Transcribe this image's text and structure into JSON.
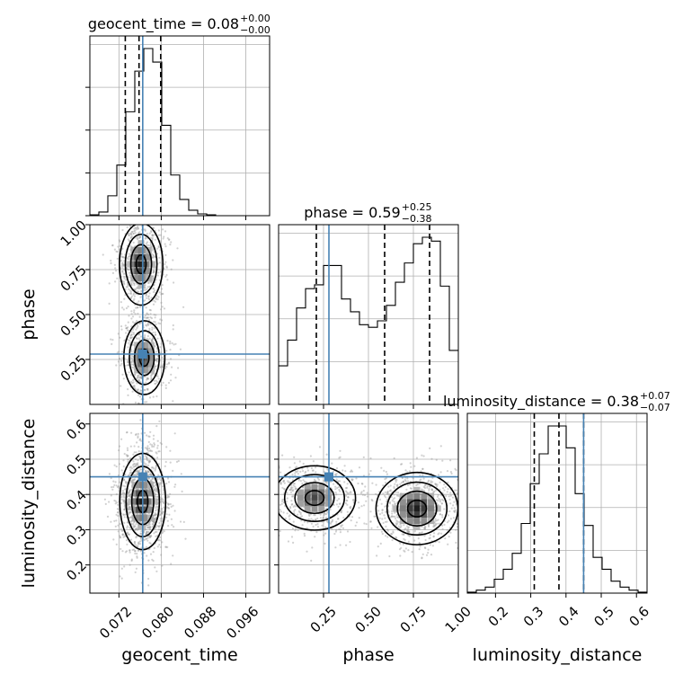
{
  "chart_data": {
    "type": "corner",
    "parameters": [
      "geocent_time",
      "phase",
      "luminosity_distance"
    ],
    "truths": {
      "geocent_time": 0.0765,
      "phase": 0.28,
      "luminosity_distance": 0.45
    },
    "titles": [
      {
        "param": "geocent_time",
        "text": "geocent_time = 0.08",
        "sup": "+0.00",
        "sub": "−0.00"
      },
      {
        "param": "phase",
        "text": "phase = 0.59",
        "sup": "+0.25",
        "sub": "−0.38"
      },
      {
        "param": "luminosity_distance",
        "text": "luminosity_distance = 0.38",
        "sup": "+0.07",
        "sub": "−0.07"
      }
    ],
    "axis_labels": {
      "x": [
        "geocent_time",
        "phase",
        "luminosity_distance"
      ],
      "y": [
        "phase",
        "luminosity_distance"
      ]
    },
    "ticks": {
      "geocent_time": {
        "values": [
          0.072,
          0.08,
          0.088,
          0.096
        ],
        "labels": [
          "0.072",
          "0.080",
          "0.088",
          "0.096"
        ]
      },
      "phase": {
        "values": [
          0.25,
          0.5,
          0.75,
          1.0
        ],
        "labels": [
          "0.25",
          "0.50",
          "0.75",
          "1.00"
        ]
      },
      "luminosity_distance": {
        "values": [
          0.2,
          0.3,
          0.4,
          0.5,
          0.6
        ],
        "labels": [
          "0.2",
          "0.3",
          "0.4",
          "0.5",
          "0.6"
        ]
      }
    },
    "ranges": {
      "geocent_time": [
        0.0665,
        0.1005
      ],
      "phase": [
        0.0,
        1.0
      ],
      "luminosity_distance": [
        0.12,
        0.63
      ]
    },
    "histograms": {
      "geocent_time": {
        "edges": [
          0.0665,
          0.0682,
          0.0699,
          0.0716,
          0.0733,
          0.075,
          0.0767,
          0.0784,
          0.0801,
          0.0818,
          0.0835,
          0.0852,
          0.0869,
          0.0886,
          0.0903,
          0.092,
          0.0937,
          0.0954,
          0.0971,
          0.0988,
          0.1005
        ],
        "counts": [
          1,
          4,
          22,
          56,
          115,
          160,
          185,
          170,
          100,
          45,
          18,
          6,
          2,
          1,
          0,
          0,
          0,
          0,
          0,
          0
        ],
        "quantiles": [
          0.0732,
          0.0758,
          0.0799
        ]
      },
      "phase": {
        "edges": [
          0.0,
          0.05,
          0.1,
          0.15,
          0.2,
          0.25,
          0.3,
          0.35,
          0.4,
          0.45,
          0.5,
          0.55,
          0.6,
          0.65,
          0.7,
          0.75,
          0.8,
          0.85,
          0.9,
          0.95,
          1.0
        ],
        "counts": [
          30,
          50,
          75,
          90,
          93,
          108,
          108,
          82,
          72,
          62,
          60,
          65,
          77,
          95,
          110,
          125,
          130,
          127,
          92,
          42
        ],
        "quantiles": [
          0.21,
          0.59,
          0.84
        ]
      },
      "luminosity_distance": {
        "edges": [
          0.12,
          0.1455,
          0.171,
          0.1965,
          0.222,
          0.2475,
          0.273,
          0.2985,
          0.324,
          0.3495,
          0.375,
          0.4005,
          0.426,
          0.4515,
          0.477,
          0.5025,
          0.528,
          0.5535,
          0.579,
          0.6045,
          0.63
        ],
        "counts": [
          1,
          3,
          6,
          14,
          24,
          40,
          70,
          110,
          140,
          168,
          168,
          146,
          100,
          68,
          36,
          24,
          12,
          6,
          3,
          1
        ],
        "quantiles": [
          0.31,
          0.38,
          0.45
        ]
      }
    },
    "density_modes": {
      "phase_vs_geocent_time": [
        {
          "x": 0.0762,
          "y": 0.78,
          "sx": 0.0018,
          "sy": 0.1,
          "w": 1.0
        },
        {
          "x": 0.0768,
          "y": 0.26,
          "sx": 0.0017,
          "sy": 0.09,
          "w": 0.85
        }
      ],
      "luminosity_distance_vs_geocent_time": [
        {
          "x": 0.0765,
          "y": 0.38,
          "sx": 0.0019,
          "sy": 0.06,
          "w": 1.0
        }
      ],
      "luminosity_distance_vs_phase": [
        {
          "x": 0.2,
          "y": 0.39,
          "sx": 0.1,
          "sy": 0.04,
          "w": 0.8
        },
        {
          "x": 0.77,
          "y": 0.36,
          "sx": 0.1,
          "sy": 0.045,
          "w": 1.0
        }
      ]
    },
    "colors": {
      "truth": "#4682b4",
      "line": "#000000",
      "grid": "#b0b0b0",
      "samples": "#9a9a9a"
    }
  }
}
